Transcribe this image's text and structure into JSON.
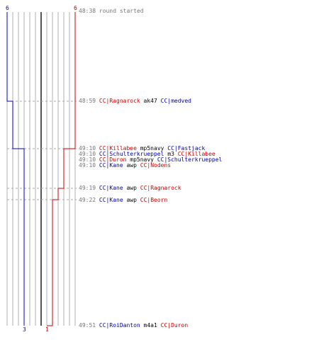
{
  "teams": {
    "blue": {
      "color": "#0000cc",
      "start_count": "6",
      "end_count": "3"
    },
    "red": {
      "color": "#cc0000",
      "start_count": "6",
      "end_count": "1"
    }
  },
  "events": [
    {
      "time": "48:38",
      "parts": [
        {
          "text": "round started",
          "style": "gray"
        }
      ]
    },
    {
      "time": "48:59",
      "parts": [
        {
          "text": "CC|Ragnarock",
          "style": "red"
        },
        {
          "text": "ak47",
          "style": "blk"
        },
        {
          "text": "CC|medved",
          "style": "blue"
        }
      ]
    },
    {
      "time": "49:10",
      "parts": [
        {
          "text": "CC|Killabee",
          "style": "red"
        },
        {
          "text": "mp5navy",
          "style": "blk"
        },
        {
          "text": "CC|Fastjack",
          "style": "blue"
        }
      ]
    },
    {
      "time": "49:10",
      "parts": [
        {
          "text": "CC|Schulterkrueppel",
          "style": "blue"
        },
        {
          "text": "m3",
          "style": "blk"
        },
        {
          "text": "CC|Killabee",
          "style": "red"
        }
      ]
    },
    {
      "time": "49:10",
      "parts": [
        {
          "text": "CC|Duron",
          "style": "red"
        },
        {
          "text": "mp5navy",
          "style": "blk"
        },
        {
          "text": "CC|Schulterkrueppel",
          "style": "blue"
        }
      ]
    },
    {
      "time": "49:10",
      "parts": [
        {
          "text": "CC|Kane",
          "style": "blue"
        },
        {
          "text": "awp",
          "style": "blk"
        },
        {
          "text": "CC|Nodens",
          "style": "red"
        }
      ]
    },
    {
      "time": "49:19",
      "parts": [
        {
          "text": "CC|Kane",
          "style": "blue"
        },
        {
          "text": "awp",
          "style": "blk"
        },
        {
          "text": "CC|Ragnarock",
          "style": "red"
        }
      ]
    },
    {
      "time": "49:22",
      "parts": [
        {
          "text": "CC|Kane",
          "style": "blue"
        },
        {
          "text": "awp",
          "style": "blk"
        },
        {
          "text": "CC|Beorn",
          "style": "red"
        }
      ]
    },
    {
      "time": "49:51",
      "parts": [
        {
          "text": "CC|RoiDanton",
          "style": "blue"
        },
        {
          "text": "m4a1",
          "style": "blk"
        },
        {
          "text": "CC|Duron",
          "style": "red"
        }
      ]
    }
  ]
}
